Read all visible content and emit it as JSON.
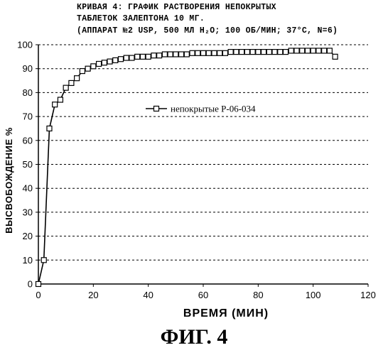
{
  "title_lines": [
    "КРИВАЯ 4: ГРАФИК РАСТВОРЕНИЯ НЕПОКРЫТЫХ",
    "ТАБЛЕТОК ЗАЛЕПТОНА 10 МГ.",
    "(АППАРАТ №2 USP, 500 МЛ H₂O; 100 ОБ/МИН; 37°С, N=6)"
  ],
  "figure_caption": "ФИГ. 4",
  "chart_data": {
    "type": "line",
    "title": "КРИВАЯ 4: ГРАФИК РАСТВОРЕНИЯ НЕПОКРЫТЫХ ТАБЛЕТОК ЗАЛЕПТОНА 10 МГ. (АППАРАТ №2 USP, 500 МЛ H₂O; 100 ОБ/МИН; 37°С, N=6)",
    "xlabel": "ВРЕМЯ (МИН)",
    "ylabel": "ВЫСВОБОЖДЕНИЕ %",
    "xlim": [
      0,
      120
    ],
    "ylim": [
      0,
      100
    ],
    "x_ticks": [
      "0",
      "20",
      "40",
      "60",
      "80",
      "100",
      "120"
    ],
    "y_ticks": [
      "0",
      "10",
      "20",
      "30",
      "40",
      "50",
      "60",
      "70",
      "80",
      "90",
      "100"
    ],
    "grid": "horizontal dashed",
    "legend_position": "center-left",
    "series": [
      {
        "name": "непокрытые Р-06-034",
        "marker": "open-square",
        "x": [
          0,
          2,
          4,
          6,
          8,
          10,
          12,
          14,
          16,
          18,
          20,
          22,
          24,
          26,
          28,
          30,
          32,
          34,
          36,
          38,
          40,
          42,
          44,
          46,
          48,
          50,
          52,
          54,
          56,
          58,
          60,
          62,
          64,
          66,
          68,
          70,
          72,
          74,
          76,
          78,
          80,
          82,
          84,
          86,
          88,
          90,
          92,
          94,
          96,
          98,
          100,
          102,
          104,
          106,
          108
        ],
        "y": [
          0,
          10,
          65,
          75,
          77,
          82,
          84,
          86,
          89,
          90,
          91,
          92,
          92.5,
          93,
          93.5,
          94,
          94.5,
          94.5,
          95,
          95,
          95,
          95.5,
          95.5,
          96,
          96,
          96,
          96,
          96,
          96.5,
          96.5,
          96.5,
          96.5,
          96.5,
          96.5,
          96.5,
          97,
          97,
          97,
          97,
          97,
          97,
          97,
          97,
          97,
          97,
          97,
          97.5,
          97.5,
          97.5,
          97.5,
          97.5,
          97.5,
          97.5,
          97.5,
          95
        ]
      }
    ]
  }
}
